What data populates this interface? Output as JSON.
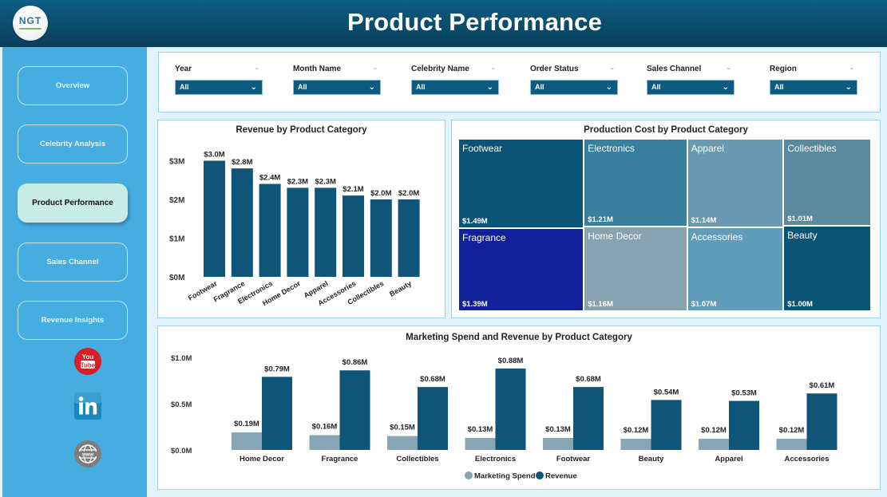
{
  "header": {
    "title": "Product Performance",
    "logo_text": "NGT"
  },
  "sidebar": {
    "items": [
      {
        "label": "Overview",
        "active": false
      },
      {
        "label": "Celebrity Analysis",
        "active": false
      },
      {
        "label": "Product Performance",
        "active": true
      },
      {
        "label": "Sales Channel",
        "active": false
      },
      {
        "label": "Revenue Insights",
        "active": false
      }
    ],
    "social": [
      {
        "name": "youtube-icon",
        "label": "You Tube"
      },
      {
        "name": "linkedin-icon",
        "label": "in"
      },
      {
        "name": "website-icon",
        "label": "www"
      }
    ]
  },
  "filters": [
    {
      "label": "Year",
      "value": "All"
    },
    {
      "label": "Month Name",
      "value": "All"
    },
    {
      "label": "Celebrity Name",
      "value": "All"
    },
    {
      "label": "Order Status",
      "value": "All"
    },
    {
      "label": "Sales Channel",
      "value": "All"
    },
    {
      "label": "Region",
      "value": "All"
    }
  ],
  "colors": {
    "bar": "#0e5577",
    "marketing": "#86a6b5",
    "revenue": "#0e5577"
  },
  "chart_data": [
    {
      "type": "bar",
      "title": "Revenue by Product Category",
      "categories": [
        "Footwear",
        "Fragrance",
        "Electronics",
        "Home Decor",
        "Apparel",
        "Accessories",
        "Collectibles",
        "Beauty"
      ],
      "values": [
        3.0,
        2.8,
        2.4,
        2.3,
        2.3,
        2.1,
        2.0,
        2.0
      ],
      "value_labels": [
        "$3.0M",
        "$2.8M",
        "$2.4M",
        "$2.3M",
        "$2.3M",
        "$2.1M",
        "$2.0M",
        "$2.0M"
      ],
      "yticks": [
        0,
        1,
        2,
        3
      ],
      "ytick_labels": [
        "$0M",
        "$1M",
        "$2M",
        "$3M"
      ],
      "ylim": [
        0,
        3.05
      ],
      "unit": "$M",
      "xlabel": "",
      "ylabel": ""
    },
    {
      "type": "treemap",
      "title": "Production Cost by Product Category",
      "items": [
        {
          "label": "Footwear",
          "value": 1.49,
          "value_label": "$1.49M",
          "color": "#0c5475"
        },
        {
          "label": "Fragrance",
          "value": 1.39,
          "value_label": "$1.39M",
          "color": "#12219a"
        },
        {
          "label": "Electronics",
          "value": 1.21,
          "value_label": "$1.21M",
          "color": "#3a7f9e"
        },
        {
          "label": "Home Decor",
          "value": 1.16,
          "value_label": "$1.16M",
          "color": "#86a3af"
        },
        {
          "label": "Apparel",
          "value": 1.14,
          "value_label": "$1.14M",
          "color": "#6a9ab1"
        },
        {
          "label": "Accessories",
          "value": 1.07,
          "value_label": "$1.07M",
          "color": "#5f9dba"
        },
        {
          "label": "Collectibles",
          "value": 1.01,
          "value_label": "$1.01M",
          "color": "#5b8a9f"
        },
        {
          "label": "Beauty",
          "value": 1.0,
          "value_label": "$1.00M",
          "color": "#0c5475"
        }
      ],
      "unit": "$M"
    },
    {
      "type": "bar",
      "title": "Marketing Spend and Revenue by Product Category",
      "categories": [
        "Home Decor",
        "Fragrance",
        "Collectibles",
        "Electronics",
        "Footwear",
        "Beauty",
        "Apparel",
        "Accessories"
      ],
      "series": [
        {
          "name": "Marketing Spend",
          "values": [
            0.19,
            0.16,
            0.15,
            0.13,
            0.13,
            0.12,
            0.12,
            0.12
          ],
          "value_labels": [
            "$0.19M",
            "$0.16M",
            "$0.15M",
            "$0.13M",
            "$0.13M",
            "$0.12M",
            "$0.12M",
            "$0.12M"
          ]
        },
        {
          "name": "Revenue",
          "values": [
            0.79,
            0.86,
            0.68,
            0.88,
            0.68,
            0.54,
            0.53,
            0.61
          ],
          "value_labels": [
            "$0.79M",
            "$0.86M",
            "$0.68M",
            "$0.88M",
            "$0.68M",
            "$0.54M",
            "$0.53M",
            "$0.61M"
          ]
        }
      ],
      "yticks": [
        0,
        0.5,
        1.0
      ],
      "ytick_labels": [
        "$0.0M",
        "$0.5M",
        "$1.0M"
      ],
      "ylim": [
        0,
        1.0
      ],
      "legend": "bottom-center",
      "unit": "$M",
      "xlabel": "",
      "ylabel": ""
    }
  ]
}
